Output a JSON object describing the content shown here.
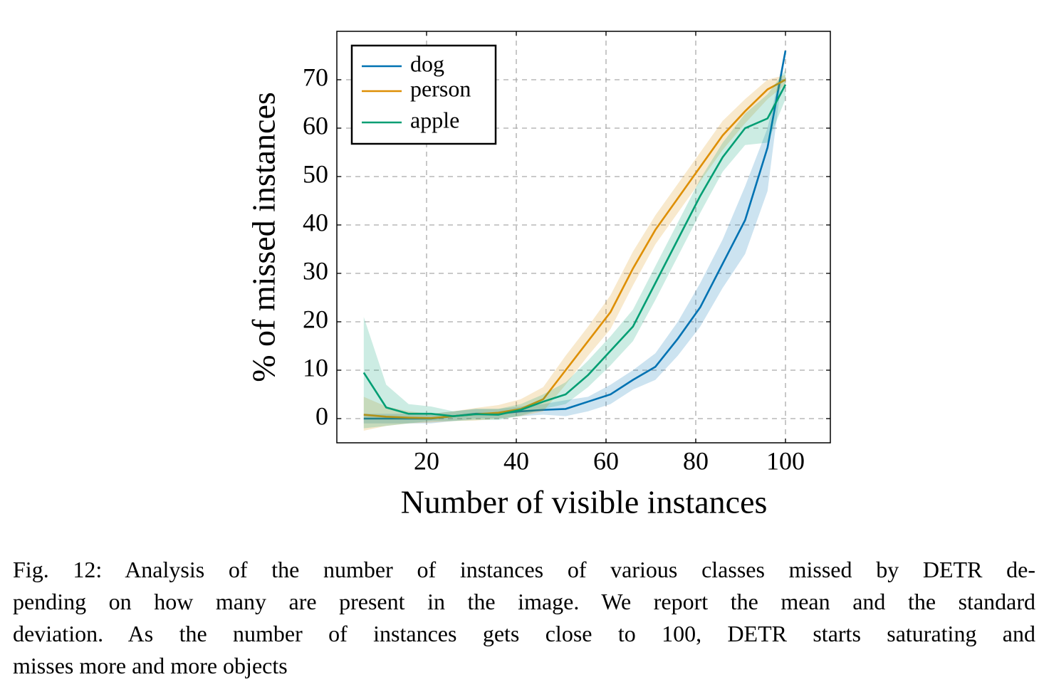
{
  "chart_data": {
    "type": "line",
    "x_label": "Number of visible instances",
    "y_label": "% of missed instances",
    "x": [
      6,
      11,
      16,
      21,
      26,
      31,
      36,
      41,
      46,
      51,
      56,
      61,
      66,
      71,
      76,
      81,
      86,
      91,
      96,
      100
    ],
    "xlim": [
      0,
      110
    ],
    "ylim": [
      -5,
      80
    ],
    "xticks": [
      20,
      40,
      60,
      80,
      100
    ],
    "yticks": [
      0,
      10,
      20,
      30,
      40,
      50,
      60,
      70
    ],
    "grid": true,
    "legend": "upper-left",
    "series": [
      {
        "name": "dog",
        "color": "#0072b2",
        "values": [
          0,
          0,
          0,
          0,
          0.5,
          1,
          1,
          1.5,
          1.8,
          2,
          3.5,
          5,
          8,
          10.7,
          16.5,
          23,
          32,
          41,
          56,
          76
        ],
        "upper": [
          1,
          1,
          1,
          1,
          1.5,
          2,
          2,
          2.5,
          3,
          3.8,
          4.5,
          7,
          10,
          13.5,
          20,
          28,
          37,
          48,
          60,
          76
        ],
        "lower": [
          -1,
          -1,
          -1,
          -1,
          -0.5,
          0,
          0,
          0.5,
          0.8,
          0.5,
          1.5,
          3,
          6,
          8,
          13,
          19,
          27,
          34,
          47,
          76
        ]
      },
      {
        "name": "person",
        "color": "#de8f05",
        "values": [
          0.8,
          0.4,
          0.2,
          0.1,
          0.5,
          0.9,
          1.2,
          2,
          4,
          10,
          16,
          22,
          31,
          39,
          45.5,
          52,
          58.5,
          63.5,
          68,
          70
        ],
        "upper": [
          4.5,
          2.5,
          1.5,
          1,
          1.5,
          2.2,
          2.8,
          4,
          6.5,
          13,
          19,
          25.5,
          34.5,
          42,
          48.5,
          55,
          61.5,
          66,
          70,
          71
        ],
        "lower": [
          -2.5,
          -1.5,
          -1,
          -0.8,
          -0.5,
          -0.4,
          0,
          0.5,
          1.5,
          7,
          13,
          18.5,
          27.5,
          36,
          42.5,
          49,
          55.5,
          61,
          66,
          69
        ]
      },
      {
        "name": "apple",
        "color": "#029e73",
        "values": [
          9.5,
          2.3,
          1,
          1,
          0.5,
          0.9,
          0.8,
          1.8,
          3.5,
          5,
          9,
          14,
          19,
          28,
          37,
          46,
          54,
          60,
          62,
          69
        ],
        "upper": [
          21,
          7,
          3,
          2.5,
          1.5,
          2,
          2,
          3,
          5,
          7.5,
          12,
          17,
          22.5,
          31.5,
          40.5,
          49.5,
          57,
          63,
          67,
          72
        ],
        "lower": [
          -2,
          -1.5,
          -1,
          -0.5,
          -0.5,
          -0.3,
          -0.3,
          0.6,
          2,
          3,
          6.5,
          11,
          16,
          24.5,
          33.5,
          42.5,
          51,
          56.5,
          57,
          66
        ]
      }
    ]
  },
  "caption_lines": [
    "Fig. 12: Analysis of the number of instances of various classes missed by DETR de-",
    "pending on how many are present in the image. We report the mean and the standard",
    "deviation. As the number of instances gets close to 100, DETR starts saturating and",
    "misses more and more objects"
  ]
}
